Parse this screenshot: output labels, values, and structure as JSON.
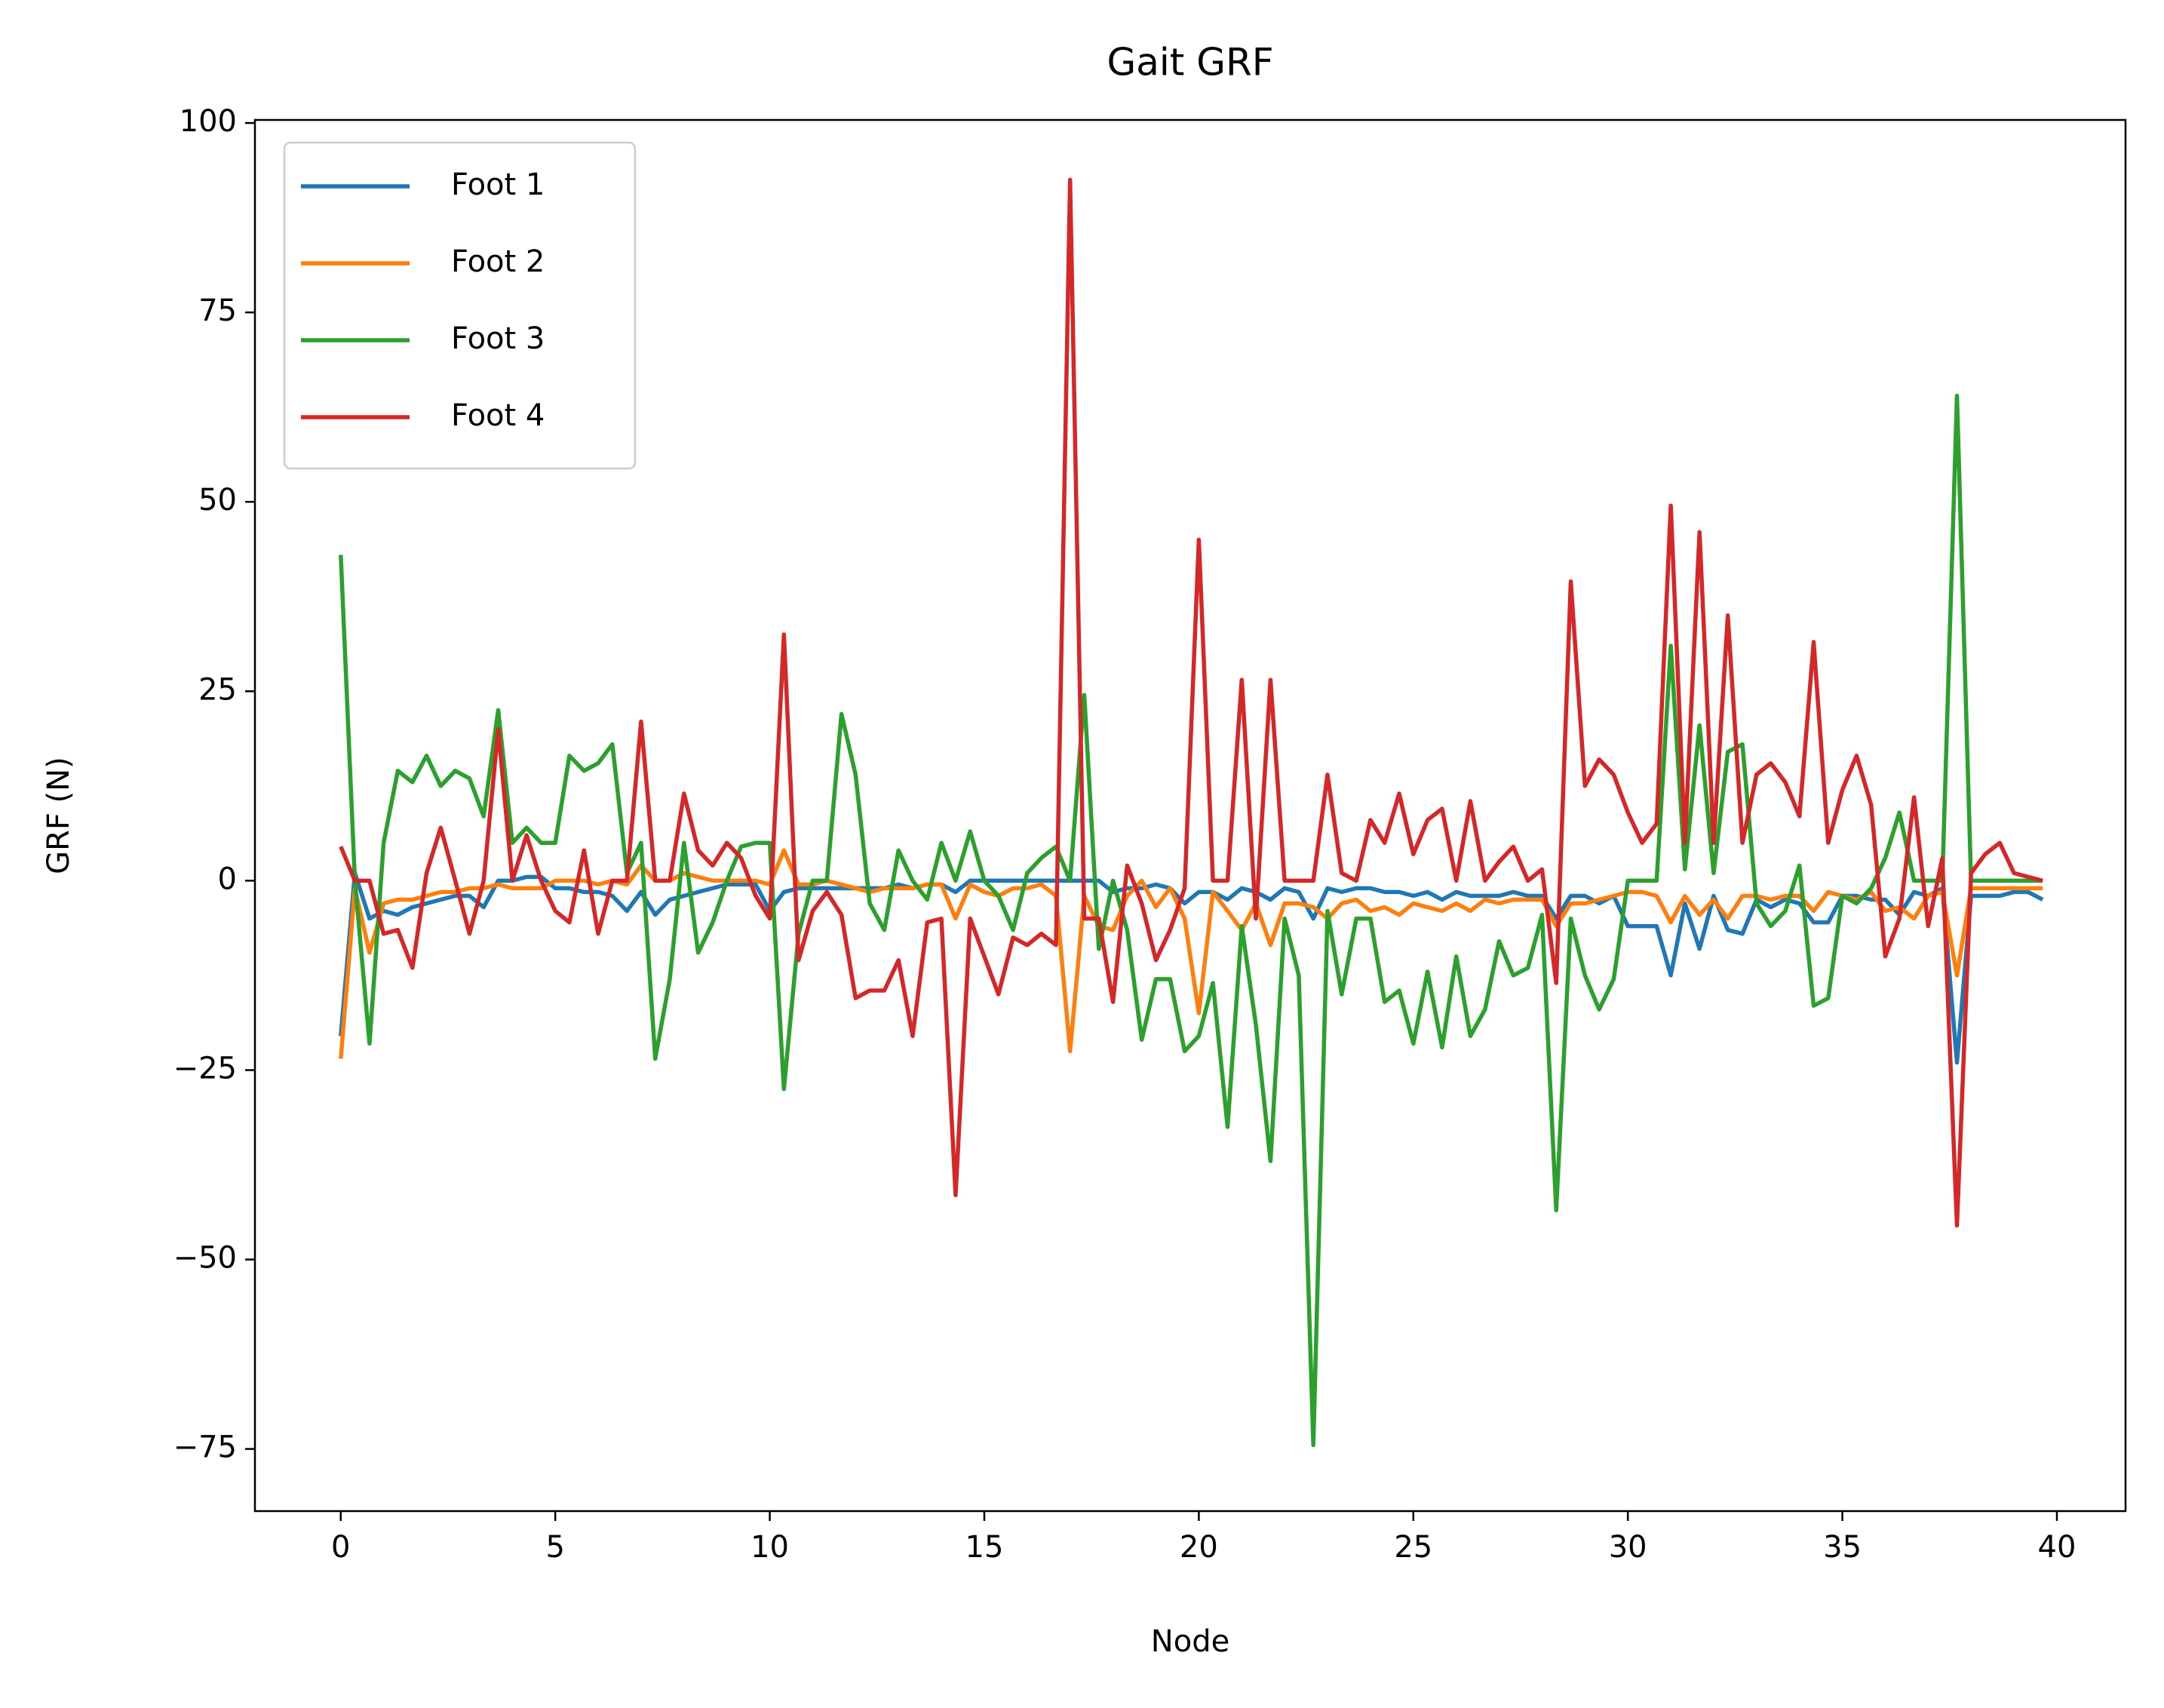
{
  "chart_data": {
    "type": "line",
    "title": "Gait GRF",
    "x_label": "Node",
    "y_label": "GRF (N)",
    "x": [
      0,
      0.33,
      0.67,
      1,
      1.33,
      1.67,
      2,
      2.33,
      2.67,
      3,
      3.33,
      3.67,
      4,
      4.33,
      4.67,
      5,
      5.33,
      5.67,
      6,
      6.33,
      6.67,
      7,
      7.33,
      7.67,
      8,
      8.33,
      8.67,
      9,
      9.33,
      9.67,
      10,
      10.33,
      10.67,
      11,
      11.33,
      11.67,
      12,
      12.33,
      12.67,
      13,
      13.33,
      13.67,
      14,
      14.33,
      14.67,
      15,
      15.33,
      15.67,
      16,
      16.33,
      16.67,
      17,
      17.33,
      17.67,
      18,
      18.33,
      18.67,
      19,
      19.33,
      19.67,
      20,
      20.33,
      20.67,
      21,
      21.33,
      21.67,
      22,
      22.33,
      22.67,
      23,
      23.33,
      23.67,
      24,
      24.33,
      24.67,
      25,
      25.33,
      25.67,
      26,
      26.33,
      26.67,
      27,
      27.33,
      27.67,
      28,
      28.33,
      28.67,
      29,
      29.33,
      29.67,
      30,
      30.33,
      30.67,
      31,
      31.33,
      31.67,
      32,
      32.33,
      32.67,
      33,
      33.33,
      33.67,
      34,
      34.33,
      34.67,
      35,
      35.33,
      35.67,
      36,
      36.33,
      36.67,
      37,
      37.33,
      37.67,
      38,
      38.33,
      38.67,
      39,
      39.33,
      39.67
    ],
    "series": [
      {
        "name": "Foot 1",
        "color": "#1f77b4",
        "values": [
          -20.5,
          1,
          -5,
          -4,
          -4.5,
          -3.5,
          -3,
          -2.5,
          -2,
          -2,
          -3.5,
          0,
          0,
          0.5,
          0.5,
          -1,
          -1,
          -1.5,
          -1.5,
          -2,
          -4,
          -1.5,
          -4.5,
          -2.5,
          -2,
          -1.5,
          -1,
          -0.5,
          -0.5,
          -0.5,
          -4,
          -1.5,
          -1,
          -1,
          -1,
          -1,
          -1,
          -1,
          -1,
          -0.5,
          -1,
          -0.5,
          -0.5,
          -1.5,
          0,
          0,
          0,
          0,
          0,
          0,
          0,
          0,
          0,
          0,
          -1.5,
          -1,
          -1,
          -0.5,
          -1,
          -3,
          -1.5,
          -1.5,
          -2.5,
          -1,
          -1.5,
          -2.5,
          -1,
          -1.5,
          -5,
          -1,
          -1.5,
          -1,
          -1,
          -1.5,
          -1.5,
          -2,
          -1.5,
          -2.5,
          -1.5,
          -2,
          -2,
          -2,
          -1.5,
          -2,
          -2,
          -5,
          -2,
          -2,
          -3,
          -2,
          -6,
          -6,
          -6,
          -12.5,
          -3,
          -9,
          -2,
          -6.5,
          -7,
          -2.5,
          -3.5,
          -2.5,
          -3,
          -5.5,
          -5.5,
          -2,
          -2,
          -2.5,
          -2.5,
          -4.5,
          -1.5,
          -2,
          -1,
          -24,
          -2,
          -2,
          -2,
          -1.5,
          -1.5,
          -2.5
        ]
      },
      {
        "name": "Foot 2",
        "color": "#ff7f0e",
        "values": [
          -23.5,
          -1,
          -9.5,
          -3,
          -2.5,
          -2.5,
          -2,
          -1.5,
          -1.5,
          -1,
          -1,
          -0.5,
          -1,
          -1,
          -1,
          0,
          0,
          0,
          -0.5,
          0,
          -0.5,
          2,
          0,
          0,
          1,
          0.5,
          0,
          0,
          0,
          0,
          -0.5,
          4,
          -0.5,
          -0.5,
          0,
          -0.5,
          -1,
          -1.5,
          -1,
          -1,
          -1,
          -0.5,
          -0.5,
          -5,
          -0.5,
          -1.5,
          -2,
          -1,
          -1,
          -0.5,
          -2,
          -22.5,
          -2,
          -6,
          -6.5,
          -2,
          0,
          -3.5,
          -1,
          -5,
          -17.5,
          -1.5,
          -4,
          -6.5,
          -3,
          -8.5,
          -3,
          -3,
          -3.5,
          -5,
          -3,
          -2.5,
          -4,
          -3.5,
          -4.5,
          -3,
          -3.5,
          -4,
          -3,
          -4,
          -2.5,
          -3,
          -2.5,
          -2.5,
          -2.5,
          -6,
          -3,
          -3,
          -2.5,
          -2,
          -1.5,
          -1.5,
          -2,
          -5.5,
          -2,
          -4.5,
          -2.5,
          -5,
          -2,
          -2,
          -2.5,
          -2,
          -2,
          -4,
          -1.5,
          -2,
          -2.5,
          -1.5,
          -4,
          -3.5,
          -5,
          -2,
          -1.5,
          -12.5,
          -1,
          -1,
          -1,
          -1,
          -1,
          -1
        ]
      },
      {
        "name": "Foot 3",
        "color": "#2ca02c",
        "values": [
          43,
          0,
          -21.5,
          5,
          14.5,
          13,
          16.5,
          12.5,
          14.5,
          13.5,
          8.5,
          22.5,
          5,
          7,
          5,
          5,
          16.5,
          14.5,
          15.5,
          18,
          1,
          5,
          -23.5,
          -13,
          5,
          -9.5,
          -5.5,
          0,
          4.5,
          5,
          5,
          -27.5,
          -7,
          0,
          0,
          22,
          14,
          -3,
          -6.5,
          4,
          0,
          -2.5,
          5,
          0,
          6.5,
          0,
          -2,
          -6.5,
          1,
          3,
          4.5,
          0,
          24.5,
          -9,
          0,
          -6.5,
          -21,
          -13,
          -13,
          -22.5,
          -20.5,
          -13.5,
          -32.5,
          -6,
          -19,
          -37,
          -5,
          -12.5,
          -74.5,
          -4,
          -15,
          -5,
          -5,
          -16,
          -14.5,
          -21.5,
          -12,
          -22,
          -10,
          -20.5,
          -17,
          -8,
          -12.5,
          -11.5,
          -4.5,
          -43.5,
          -5,
          -12.5,
          -17,
          -13,
          0,
          0,
          0,
          31,
          1.5,
          20.5,
          1,
          17,
          18,
          -3,
          -6,
          -4,
          2,
          -16.5,
          -15.5,
          -2,
          -3,
          -1,
          3,
          9,
          0,
          0,
          0,
          64,
          0,
          0,
          0,
          0,
          0,
          0
        ]
      },
      {
        "name": "Foot 4",
        "color": "#d62728",
        "values": [
          4.5,
          0,
          0,
          -7,
          -6.5,
          -11.5,
          1,
          7,
          0,
          -7,
          0,
          20,
          0,
          6,
          0,
          -4,
          -5.5,
          4,
          -7,
          0,
          0,
          21,
          0,
          0,
          11.5,
          4,
          2,
          5,
          3,
          -2,
          -5,
          32.5,
          -10.5,
          -4,
          -1.5,
          -4.5,
          -15.5,
          -14.5,
          -14.5,
          -10.5,
          -20.5,
          -5.5,
          -5,
          -41.5,
          -5,
          -10,
          -15,
          -7.5,
          -8.5,
          -7,
          -8.5,
          92.5,
          -5,
          -5,
          -16,
          2,
          -3,
          -10.5,
          -6.5,
          -1,
          45,
          0,
          0,
          26.5,
          -5,
          26.5,
          0,
          0,
          0,
          14,
          1,
          0,
          8,
          5,
          11.5,
          3.5,
          8,
          9.5,
          0,
          10.5,
          0,
          2.5,
          4.5,
          0,
          1.5,
          -13.5,
          39.5,
          12.5,
          16,
          14,
          9,
          5,
          7.5,
          49.5,
          5,
          46,
          5,
          35,
          5,
          14,
          15.5,
          13,
          8.5,
          31.5,
          5,
          12,
          16.5,
          10,
          -10,
          -5,
          11,
          -6,
          3,
          -45.5,
          1,
          3.5,
          5,
          1,
          0.5,
          0
        ]
      }
    ],
    "xlim": [
      -2.0,
      41.6
    ],
    "ylim": [
      -83.2,
      100.4
    ],
    "xticks": [
      0,
      5,
      10,
      15,
      20,
      25,
      30,
      35,
      40
    ],
    "yticks": [
      {
        "value": -75,
        "label": "−75"
      },
      {
        "value": -50,
        "label": "−50"
      },
      {
        "value": -25,
        "label": "−25"
      },
      0,
      25,
      50,
      75,
      100
    ],
    "legend": "upper left",
    "grid": false
  }
}
